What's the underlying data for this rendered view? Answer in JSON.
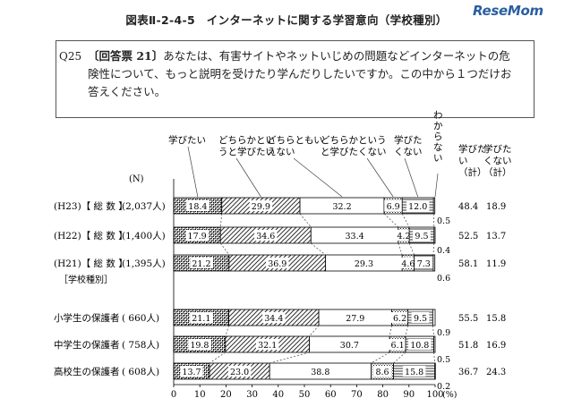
{
  "header": {
    "figure_title": "図表Ⅱ-2-4-5　インターネットに関する学習意向（学校種別）",
    "brand": "ReseMom"
  },
  "question": {
    "number": "Q25",
    "tag": "〔回答票 21〕",
    "text": "あなたは、有害サイトやネットいじめの問題などインターネットの危険性について、もっと説明を受けたり学んだりしたいですか。この中から１つだけお答えください。"
  },
  "chart_data": {
    "type": "stacked-bar",
    "orientation": "horizontal",
    "n_header": "(N)",
    "categories": [
      {
        "label": "(H23)【 総 数 】",
        "n": "(2,037人)",
        "values": [
          18.4,
          29.9,
          32.2,
          6.9,
          12.0,
          0.5
        ],
        "total_want": "48.4",
        "total_not": "18.9"
      },
      {
        "label": "(H22)【 総 数 】",
        "n": "(1,400人)",
        "values": [
          17.9,
          34.6,
          33.4,
          4.2,
          9.5,
          0.4
        ],
        "total_want": "52.5",
        "total_not": "13.7"
      },
      {
        "label": "(H21)【 総 数 】",
        "n": "(1,395人)",
        "values": [
          21.2,
          36.9,
          29.3,
          4.6,
          7.3,
          0.6
        ],
        "total_want": "58.1",
        "total_not": "11.9"
      },
      {
        "label": "小学生の保護者",
        "n": "( 660人)",
        "values": [
          21.1,
          34.4,
          27.9,
          6.2,
          9.5,
          0.9
        ],
        "total_want": "55.5",
        "total_not": "15.8"
      },
      {
        "label": "中学生の保護者",
        "n": "( 758人)",
        "values": [
          19.8,
          32.1,
          30.7,
          6.1,
          10.8,
          0.5
        ],
        "total_want": "51.8",
        "total_not": "16.9"
      },
      {
        "label": "高校生の保護者",
        "n": "( 608人)",
        "values": [
          13.7,
          23.0,
          38.8,
          8.6,
          15.8,
          0.2
        ],
        "total_want": "36.7",
        "total_not": "24.3"
      }
    ],
    "group_label": "［学校種別］",
    "series": [
      {
        "name": "学びたい"
      },
      {
        "name": "どちらかというと学びたい"
      },
      {
        "name": "どちらともいえない"
      },
      {
        "name": "どちらかというと学びたくない"
      },
      {
        "name": "学びたくない"
      },
      {
        "name": "わからない"
      }
    ],
    "total_headers": [
      "学びたい（計）",
      "学びたくない（計）"
    ],
    "x_ticks": [
      "0",
      "10",
      "20",
      "30",
      "40",
      "50",
      "60",
      "70",
      "80",
      "90",
      "100"
    ],
    "x_unit": "(%)",
    "xlim": [
      0,
      100
    ]
  }
}
